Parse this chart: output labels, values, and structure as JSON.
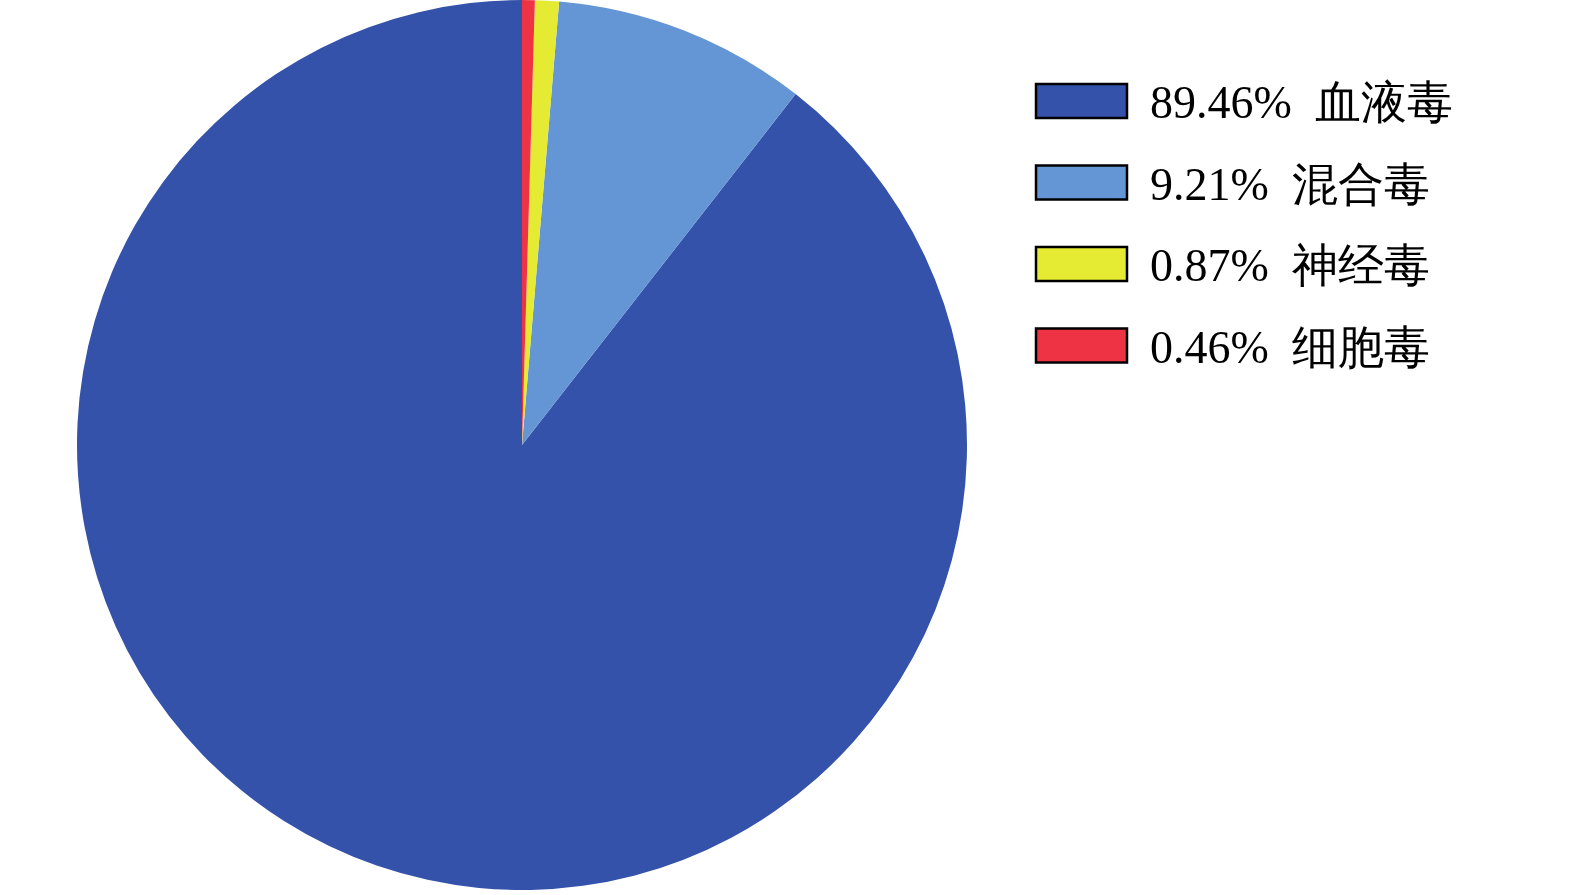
{
  "chart_data": {
    "type": "pie",
    "categories": [
      "血液毒",
      "混合毒",
      "神经毒",
      "细胞毒"
    ],
    "values": [
      89.46,
      9.21,
      0.87,
      0.46
    ],
    "value_labels": [
      "89.46%",
      "9.21%",
      "0.87%",
      "0.46%"
    ],
    "colors": [
      "#3452a9",
      "#6495d5",
      "#e5ea33",
      "#ee3344"
    ],
    "legend": "right"
  }
}
